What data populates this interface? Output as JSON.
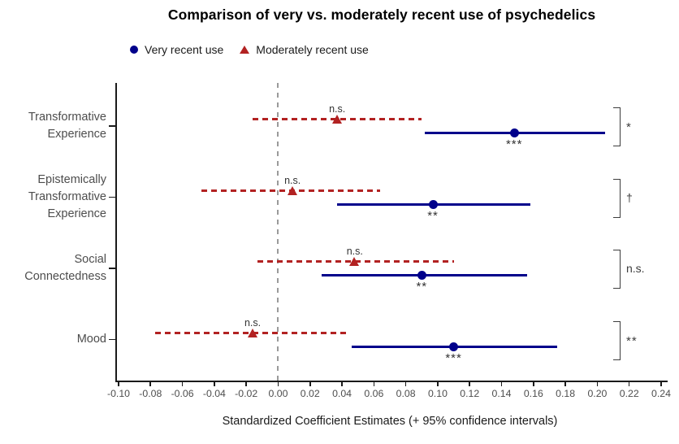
{
  "title": "Comparison of very vs. moderately recent use of psychedelics",
  "legend": {
    "items": [
      {
        "label": "Very recent use",
        "marker": "circle",
        "color": "#00008B"
      },
      {
        "label": "Moderately recent use",
        "marker": "triangle",
        "color": "#B22222"
      }
    ]
  },
  "chart_data": {
    "type": "scatter",
    "variant": "forest-plot (coefficient estimates with 95% CI)",
    "title": "Comparison of very vs. moderately recent use of psychedelics",
    "xlabel": "Standardized Coefficient Estimates (+ 95% confidence intervals)",
    "xlim": [
      -0.1,
      0.24
    ],
    "xticks": [
      -0.1,
      -0.08,
      -0.06,
      -0.04,
      -0.02,
      0.0,
      0.02,
      0.04,
      0.06,
      0.08,
      0.1,
      0.12,
      0.14,
      0.16,
      0.18,
      0.2,
      0.22,
      0.24
    ],
    "xtick_labels": [
      "-0.10",
      "-0.08",
      "-0.06",
      "-0.04",
      "-0.02",
      "0.00",
      "0.02",
      "0.04",
      "0.06",
      "0.08",
      "0.10",
      "0.12",
      "0.14",
      "0.16",
      "0.18",
      "0.20",
      "0.22",
      "0.24"
    ],
    "zero_reference_line": 0.0,
    "grid": false,
    "legend_position": "top",
    "categories": [
      "Transformative Experience",
      "Epistemically Transformative Experience",
      "Social Connectedness",
      "Mood"
    ],
    "category_label_lines": [
      [
        "Transformative",
        "Experience"
      ],
      [
        "Epistemically",
        "Transformative",
        "Experience"
      ],
      [
        "Social",
        "Connectedness"
      ],
      [
        "Mood"
      ]
    ],
    "series": [
      {
        "name": "Very recent use",
        "marker": "circle",
        "line_style": "solid",
        "color": "#00008B",
        "estimates": [
          0.148,
          0.097,
          0.09,
          0.11
        ],
        "ci_low": [
          0.092,
          0.037,
          0.027,
          0.046
        ],
        "ci_high": [
          0.205,
          0.158,
          0.156,
          0.175
        ],
        "sig_labels": [
          "***",
          "**",
          "**",
          "***"
        ]
      },
      {
        "name": "Moderately recent use",
        "marker": "triangle",
        "line_style": "dashed",
        "color": "#B22222",
        "estimates": [
          0.037,
          0.009,
          0.048,
          -0.016
        ],
        "ci_low": [
          -0.016,
          -0.048,
          -0.013,
          -0.077
        ],
        "ci_high": [
          0.09,
          0.064,
          0.11,
          0.044
        ],
        "sig_labels": [
          "n.s.",
          "n.s.",
          "n.s.",
          "n.s."
        ]
      }
    ],
    "comparison_labels": [
      "*",
      "†",
      "n.s.",
      "**"
    ],
    "colors": {
      "very_recent": "#00008B",
      "moderately_recent": "#B22222",
      "zero_line": "#9A9A9A",
      "axis": "#1A1A1A",
      "annotation": "#333333"
    }
  }
}
